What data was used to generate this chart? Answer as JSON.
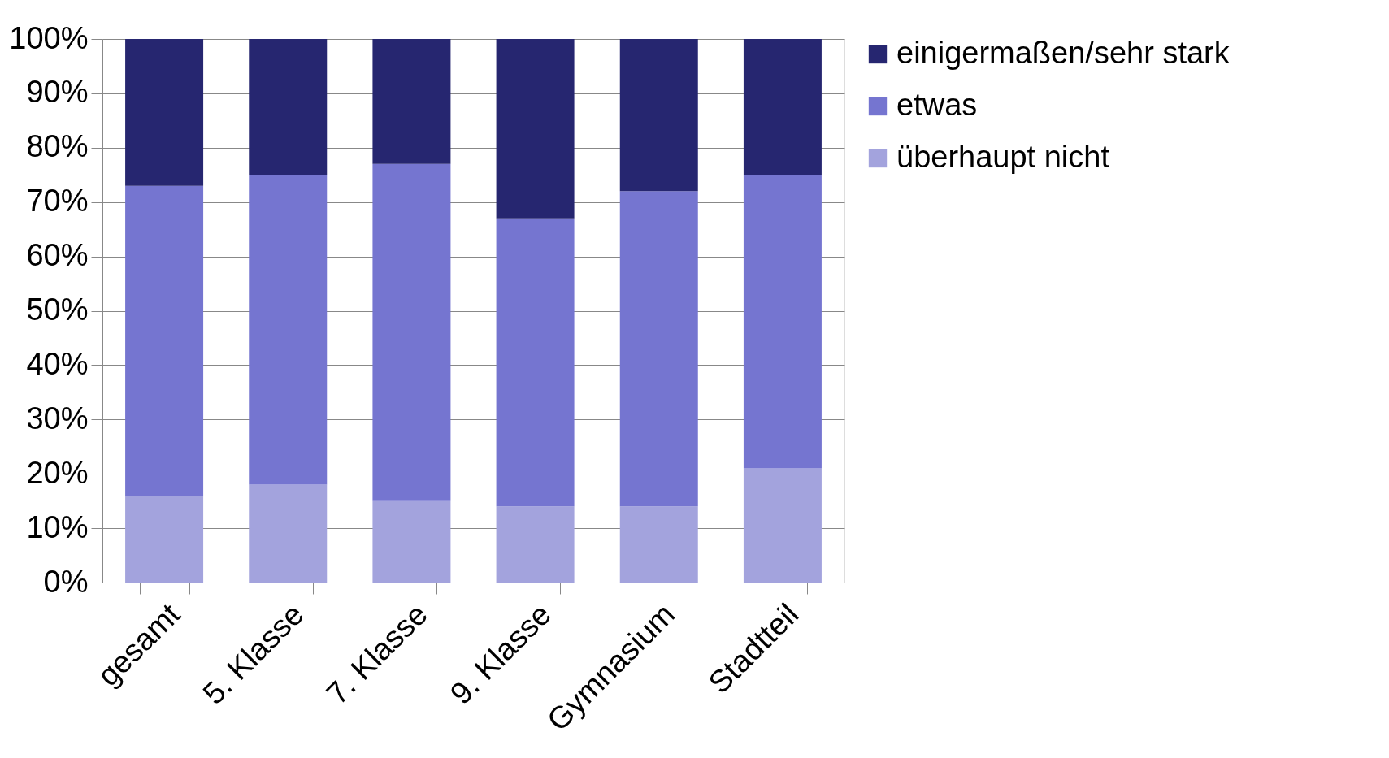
{
  "chart_data": {
    "type": "bar",
    "stacked": true,
    "categories": [
      "gesamt",
      "5. Klasse",
      "7. Klasse",
      "9. Klasse",
      "Gymnasium",
      "Stadtteil"
    ],
    "series": [
      {
        "name": "überhaupt nicht",
        "color": "#a3a3dd",
        "values": [
          16,
          18,
          15,
          14,
          14,
          21
        ]
      },
      {
        "name": "etwas",
        "color": "#7575d0",
        "values": [
          57,
          57,
          62,
          53,
          58,
          54
        ]
      },
      {
        "name": "einigermaßen/sehr stark",
        "color": "#262670",
        "values": [
          27,
          25,
          23,
          33,
          28,
          25
        ]
      }
    ],
    "ylim": [
      0,
      100
    ],
    "yticks": [
      {
        "value": 0,
        "label": "0%"
      },
      {
        "value": 10,
        "label": "10%"
      },
      {
        "value": 20,
        "label": "20%"
      },
      {
        "value": 30,
        "label": "30%"
      },
      {
        "value": 40,
        "label": "40%"
      },
      {
        "value": 50,
        "label": "50%"
      },
      {
        "value": 60,
        "label": "60%"
      },
      {
        "value": 70,
        "label": "70%"
      },
      {
        "value": 80,
        "label": "80%"
      },
      {
        "value": 90,
        "label": "90%"
      },
      {
        "value": 100,
        "label": "100%"
      }
    ],
    "grid": "y",
    "legend": "right"
  }
}
